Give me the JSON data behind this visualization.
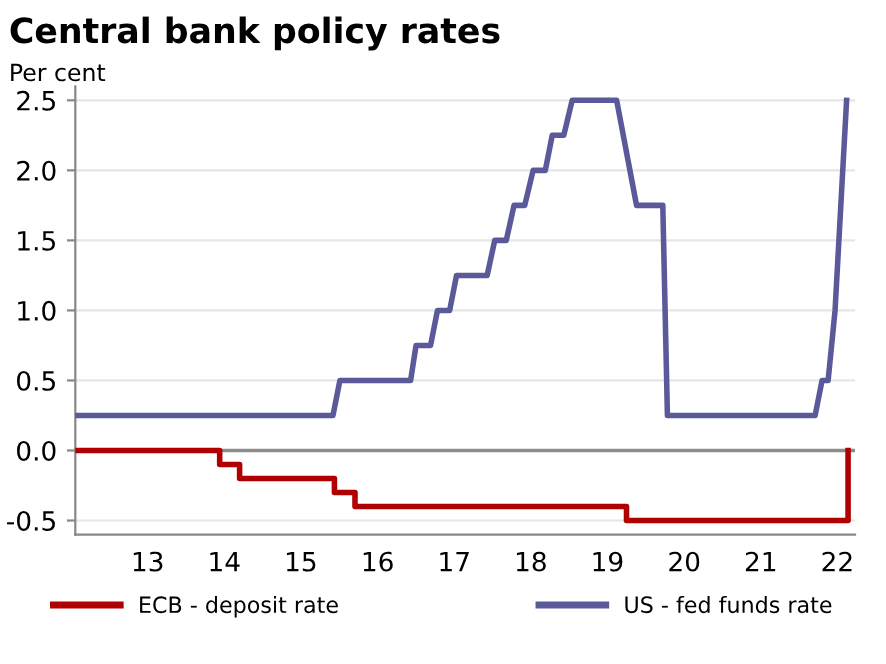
{
  "chart_data": {
    "type": "line",
    "title": "Central bank policy rates",
    "ylabel": "Per cent",
    "xlim": [
      "2012-07-22",
      "2022-09-24"
    ],
    "xticks": [
      {
        "value": "2013-07-02",
        "label": "13"
      },
      {
        "value": "2014-07-02",
        "label": "14"
      },
      {
        "value": "2015-07-02",
        "label": "15"
      },
      {
        "value": "2016-07-02",
        "label": "16"
      },
      {
        "value": "2017-07-02",
        "label": "17"
      },
      {
        "value": "2018-07-02",
        "label": "18"
      },
      {
        "value": "2019-07-02",
        "label": "19"
      },
      {
        "value": "2020-07-02",
        "label": "20"
      },
      {
        "value": "2021-07-02",
        "label": "21"
      },
      {
        "value": "2022-07-02",
        "label": "22"
      }
    ],
    "ylim": [
      -0.6,
      2.6
    ],
    "yticks": [
      {
        "value": -0.5,
        "label": "-0.5"
      },
      {
        "value": 0,
        "label": "0.0"
      },
      {
        "value": 0.5,
        "label": "0.5"
      },
      {
        "value": 1,
        "label": "1.0"
      },
      {
        "value": 1.5,
        "label": "1.5"
      },
      {
        "value": 2,
        "label": "2.0"
      },
      {
        "value": 2.5,
        "label": "2.5"
      }
    ],
    "grid": "y",
    "legend": "bottom",
    "marker": "none",
    "line_style": "solid",
    "ref_lines": [
      {
        "axis": "y",
        "value": 0,
        "color": "#8c8c8c"
      }
    ],
    "series": [
      {
        "name": "ECB - deposit rate",
        "color": "#b00000",
        "x": [
          "2012-07-22",
          "2014-06-10",
          "2014-06-10",
          "2014-09-13",
          "2014-09-13",
          "2015-12-09",
          "2015-12-09",
          "2016-03-16",
          "2016-03-16",
          "2019-10-01",
          "2019-10-01",
          "2022-08-22",
          "2022-08-22"
        ],
        "values": [
          0,
          0,
          -0.1,
          -0.1,
          -0.2,
          -0.2,
          -0.3,
          -0.3,
          -0.4,
          -0.4,
          -0.5,
          -0.5,
          0
        ]
      },
      {
        "name": "US - fed funds rate",
        "color": "#5a5a9a",
        "x": [
          "2012-07-22",
          "2015-12-02",
          "2016-01-04",
          "2016-12-06",
          "2017-01-01",
          "2017-03-11",
          "2017-04-13",
          "2017-06-10",
          "2017-07-13",
          "2017-12-06",
          "2018-01-11",
          "2018-03-07",
          "2018-04-13",
          "2018-06-03",
          "2018-07-13",
          "2018-09-09",
          "2018-10-12",
          "2018-12-06",
          "2019-01-15",
          "2019-08-15",
          "2019-11-18",
          "2020-03-22",
          "2020-04-13",
          "2022-03-18",
          "2022-04-20",
          "2022-05-19",
          "2022-06-21",
          "2022-08-15"
        ],
        "values": [
          0.25,
          0.25,
          0.5,
          0.5,
          0.75,
          0.75,
          1.0,
          1.0,
          1.25,
          1.25,
          1.5,
          1.5,
          1.75,
          1.75,
          2.0,
          2.0,
          2.25,
          2.25,
          2.5,
          2.5,
          1.75,
          1.75,
          0.25,
          0.25,
          0.5,
          0.5,
          1.0,
          2.5
        ]
      }
    ]
  }
}
